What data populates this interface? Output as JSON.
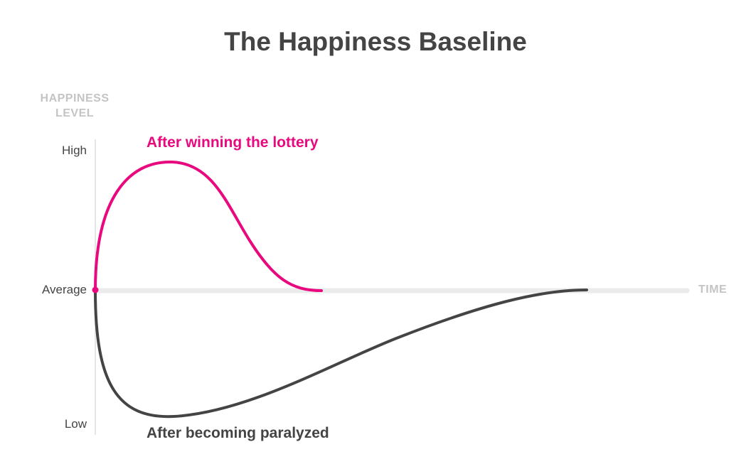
{
  "title": "The Happiness Baseline",
  "y_axis": {
    "label_line1": "HAPPINESS",
    "label_line2": "LEVEL",
    "ticks": {
      "high": "High",
      "average": "Average",
      "low": "Low"
    }
  },
  "x_axis": {
    "label": "TIME"
  },
  "series": {
    "lottery": {
      "label": "After winning the lottery",
      "color": "#e8097f"
    },
    "paralyzed": {
      "label": "After becoming paralyzed",
      "color": "#444444"
    }
  },
  "colors": {
    "baseline": "#ebebeb",
    "axis": "#e6e6e6"
  }
}
